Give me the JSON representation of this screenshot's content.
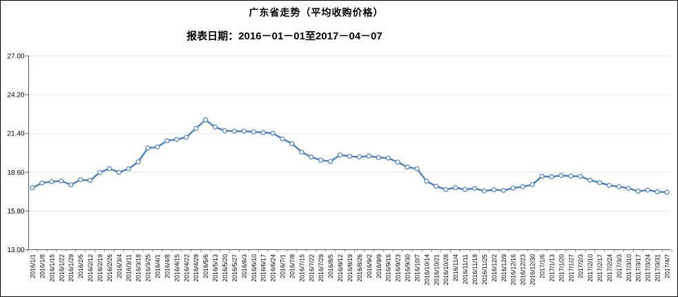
{
  "page": {
    "title": "广东省走势（平均收购价格）",
    "subtitle": "报表日期：2016－01－01至2017－04－07"
  },
  "chart_data": {
    "type": "line",
    "title": "广东省走势（平均收购价格）",
    "subtitle": "报表日期：2016－01－01至2017－04－07",
    "xlabel": "",
    "ylabel": "",
    "ylim": [
      13.0,
      27.0
    ],
    "yticks": [
      13.0,
      15.8,
      18.6,
      21.4,
      24.2,
      27.0
    ],
    "ytick_format_decimals": 2,
    "grid": true,
    "legend": "none",
    "marker": "hollow-circle",
    "colors": {
      "line": "#4a7eba",
      "marker_fill": "#ffffff",
      "grid": "#dce6f1",
      "axis": "#595959",
      "tick": "#808080",
      "label_text": "#000000",
      "frame_border": "#000000"
    },
    "categories": [
      "2016/1/1",
      "2016/1/8",
      "2016/1/15",
      "2016/1/22",
      "2016/1/29",
      "2016/2/5",
      "2016/2/12",
      "2016/2/19",
      "2016/2/26",
      "2016/3/4",
      "2016/3/11",
      "2016/3/18",
      "2016/3/25",
      "2016/4/1",
      "2016/4/8",
      "2016/4/15",
      "2016/4/22",
      "2016/4/29",
      "2016/5/6",
      "2016/5/13",
      "2016/5/20",
      "2016/5/27",
      "2016/6/3",
      "2016/6/10",
      "2016/6/17",
      "2016/6/24",
      "2016/7/1",
      "2016/7/8",
      "2016/7/15",
      "2016/7/22",
      "2016/7/29",
      "2016/8/5",
      "2016/8/12",
      "2016/8/19",
      "2016/8/26",
      "2016/9/2",
      "2016/9/9",
      "2016/9/16",
      "2016/9/23",
      "2016/9/30",
      "2016/10/7",
      "2016/10/14",
      "2016/10/21",
      "2016/10/28",
      "2016/11/4",
      "2016/11/11",
      "2016/11/18",
      "2016/11/25",
      "2016/12/2",
      "2016/12/9",
      "2016/12/16",
      "2016/12/23",
      "2016/12/30",
      "2017/1/6",
      "2017/1/13",
      "2017/1/20",
      "2017/1/27",
      "2017/2/3",
      "2017/2/10",
      "2017/2/17",
      "2017/2/24",
      "2017/3/3",
      "2017/3/10",
      "2017/3/17",
      "2017/3/24",
      "2017/3/31",
      "2017/4/7"
    ],
    "values": [
      17.48,
      17.82,
      17.92,
      17.97,
      17.68,
      18.05,
      18.0,
      18.58,
      18.86,
      18.59,
      18.84,
      19.35,
      20.34,
      20.42,
      20.87,
      20.97,
      21.12,
      21.76,
      22.38,
      21.86,
      21.6,
      21.56,
      21.56,
      21.52,
      21.47,
      21.42,
      21.01,
      20.67,
      20.05,
      19.7,
      19.47,
      19.38,
      19.85,
      19.75,
      19.7,
      19.77,
      19.67,
      19.62,
      19.33,
      18.97,
      18.85,
      17.95,
      17.58,
      17.35,
      17.48,
      17.35,
      17.43,
      17.24,
      17.33,
      17.28,
      17.45,
      17.55,
      17.7,
      18.3,
      18.27,
      18.36,
      18.32,
      18.3,
      18.02,
      17.85,
      17.65,
      17.55,
      17.44,
      17.22,
      17.31,
      17.19,
      17.15
    ]
  }
}
